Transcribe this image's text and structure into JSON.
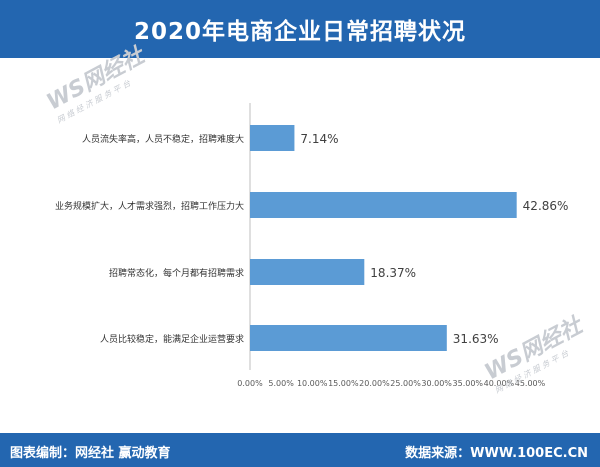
{
  "header": {
    "title": "2020年电商企业日常招聘状况"
  },
  "footer": {
    "credit": "图表编制：网经社  赢动教育",
    "source": "数据来源：WWW.100EC.CN"
  },
  "watermark": {
    "brand": "WS网经社",
    "slogan": "网 络 经 济 服 务 平 台"
  },
  "colors": {
    "header_bg": "#2366b0",
    "bar": "#5b9bd5",
    "axis": "#bfbfbf"
  },
  "chart_data": {
    "type": "bar",
    "orientation": "horizontal",
    "categories": [
      "人员流失率高，人员不稳定，招聘难度大",
      "业务规模扩大，人才需求强烈，招聘工作压力大",
      "招聘常态化，每个月都有招聘需求",
      "人员比较稳定，能满足企业运营要求"
    ],
    "values": [
      7.14,
      42.86,
      18.37,
      31.63
    ],
    "value_labels": [
      "7.14%",
      "42.86%",
      "18.37%",
      "31.63%"
    ],
    "xlim": [
      0,
      45
    ],
    "x_ticks": [
      "0.00%",
      "5.00%",
      "10.00%",
      "15.00%",
      "20.00%",
      "25.00%",
      "30.00%",
      "35.00%",
      "40.00%",
      "45.00%"
    ],
    "grid": false
  }
}
